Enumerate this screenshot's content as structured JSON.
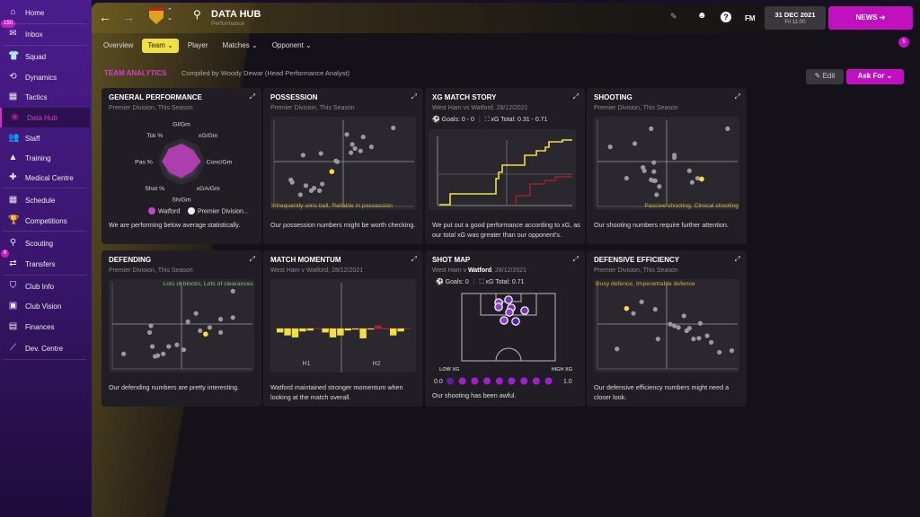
{
  "sidebar": {
    "items": [
      {
        "label": "Home",
        "icon": "home-icon"
      },
      {
        "label": "Inbox",
        "icon": "inbox-icon",
        "badge": "150"
      },
      {
        "label": "Squad",
        "icon": "shirt-icon"
      },
      {
        "label": "Dynamics",
        "icon": "dynamics-icon"
      },
      {
        "label": "Tactics",
        "icon": "tactics-icon"
      },
      {
        "label": "Data Hub",
        "icon": "data-hub-icon",
        "active": true
      },
      {
        "label": "Staff",
        "icon": "staff-icon"
      },
      {
        "label": "Training",
        "icon": "training-icon"
      },
      {
        "label": "Medical Centre",
        "icon": "medical-icon"
      },
      {
        "label": "Schedule",
        "icon": "calendar-icon"
      },
      {
        "label": "Competitions",
        "icon": "trophy-icon"
      },
      {
        "label": "Scouting",
        "icon": "search-icon"
      },
      {
        "label": "Transfers",
        "icon": "transfers-icon",
        "badge": "8"
      },
      {
        "label": "Club Info",
        "icon": "shield-icon"
      },
      {
        "label": "Club Vision",
        "icon": "briefcase-icon"
      },
      {
        "label": "Finances",
        "icon": "money-icon"
      },
      {
        "label": "Dev. Centre",
        "icon": "chart-icon"
      }
    ]
  },
  "header": {
    "title": "DATA HUB",
    "subtitle": "Performance",
    "fm": "FM",
    "date": "31 DEC 2021",
    "time": "Fri 11:00",
    "news": "NEWS",
    "notif_count": "5"
  },
  "tabs": [
    {
      "label": "Overview"
    },
    {
      "label": "Team ⌄",
      "selected": true
    },
    {
      "label": "Player"
    },
    {
      "label": "Matches ⌄"
    },
    {
      "label": "Opponent ⌄"
    }
  ],
  "section": {
    "title": "TEAM ANALYTICS",
    "compiled": "Compiled by Woody Dewar (Head Performance Analyst)",
    "edit": "Edit",
    "ask": "Ask For"
  },
  "colors": {
    "accent": "#c81ec8",
    "yellow": "#f0e040",
    "red": "#b02030"
  },
  "cards": {
    "general": {
      "title": "GENERAL PERFORMANCE",
      "sub": "Premier Division, This Season",
      "desc": "We are performing below average statistically.",
      "axes": [
        "Gl/Gm",
        "xG/Gm",
        "Conc/Gm",
        "xGA/Gm",
        "Sh/Gm",
        "Shot %",
        "Pas %",
        "Tck %"
      ],
      "watford": [
        0.55,
        0.5,
        0.6,
        0.45,
        0.5,
        0.5,
        0.6,
        0.55
      ],
      "legend_a": "Watford",
      "legend_b": "Premier Division..."
    },
    "possession": {
      "title": "POSSESSION",
      "sub": "Premier Division, This Season",
      "label": "Infrequently wins ball, Reliable in possession",
      "desc": "Our possession numbers might be worth checking.",
      "points": [
        [
          86,
          93
        ],
        [
          52,
          85
        ],
        [
          64,
          82
        ],
        [
          70,
          70
        ],
        [
          56,
          73
        ],
        [
          58,
          68
        ],
        [
          55,
          63
        ],
        [
          62,
          65
        ],
        [
          20,
          60
        ],
        [
          33,
          62
        ],
        [
          44,
          53
        ],
        [
          45,
          52
        ],
        [
          11,
          30
        ],
        [
          12,
          27
        ],
        [
          22,
          23
        ],
        [
          28,
          20
        ],
        [
          26,
          17
        ],
        [
          32,
          17
        ],
        [
          34,
          25
        ],
        [
          18,
          12
        ]
      ],
      "hl": [
        41,
        40
      ]
    },
    "xg": {
      "title": "XG MATCH STORY",
      "sub": "West Ham vs Watford, 28/12/2021",
      "goals": "Goals: 0 - 0",
      "xg": "xG Total: 0.31 - 0.71",
      "desc": "We put out a good performance according to xG, as our total xG was greater than our opponent's."
    },
    "shooting": {
      "title": "SHOOTING",
      "sub": "Premier Division, This Season",
      "label": "Passive shooting, Clinical shooting",
      "desc": "Our shooting numbers require further attention.",
      "points": [
        [
          38,
          92
        ],
        [
          94,
          92
        ],
        [
          8,
          70
        ],
        [
          26,
          74
        ],
        [
          55,
          60
        ],
        [
          55,
          57
        ],
        [
          40,
          51
        ],
        [
          32,
          45
        ],
        [
          33,
          41
        ],
        [
          40,
          40
        ],
        [
          66,
          41
        ],
        [
          20,
          32
        ],
        [
          38,
          30
        ],
        [
          40,
          29
        ],
        [
          41,
          29
        ],
        [
          68,
          27
        ],
        [
          72,
          32
        ],
        [
          44,
          22
        ],
        [
          42,
          12
        ]
      ],
      "hl": [
        75,
        31
      ]
    },
    "defending": {
      "title": "DEFENDING",
      "sub": "Premier Division, This Season",
      "label": "Lots of blocks, Lots of clearances",
      "desc": "Our defending numbers are pretty interesting.",
      "points": [
        [
          87,
          92
        ],
        [
          60,
          65
        ],
        [
          78,
          58
        ],
        [
          87,
          60
        ],
        [
          27,
          50
        ],
        [
          54,
          55
        ],
        [
          70,
          48
        ],
        [
          63,
          44
        ],
        [
          26,
          42
        ],
        [
          78,
          42
        ],
        [
          28,
          25
        ],
        [
          40,
          25
        ],
        [
          46,
          27
        ],
        [
          51,
          21
        ],
        [
          7,
          16
        ],
        [
          30,
          13
        ],
        [
          32,
          14
        ],
        [
          36,
          16
        ]
      ],
      "hl": [
        67,
        40
      ]
    },
    "momentum": {
      "title": "MATCH MOMENTUM",
      "sub": "West Ham v Watford, 28/12/2021",
      "h1": "H1",
      "h2": "H2",
      "desc": "Watford maintained stronger momentum when looking at the match overall.",
      "bars": [
        -4,
        -7,
        -9,
        -3,
        -2,
        0.5,
        -4,
        -9,
        -7,
        -2,
        -1,
        -10,
        -1,
        3,
        0,
        -7,
        -3
      ]
    },
    "shotmap": {
      "title": "SHOT MAP",
      "sub_pre": "West Ham v ",
      "sub_team": "Watford",
      "sub_post": ", 28/12/2021",
      "goals": "Goals: 0",
      "xg": "xG Total: 0.71",
      "low": "LOW XG",
      "high": "HIGH XG",
      "min": "0.0",
      "max": "1.0",
      "desc": "Our shooting has been awful."
    },
    "defeff": {
      "title": "DEFENSIVE EFFICIENCY",
      "sub": "Premier Division, This Season",
      "label": "Busy defence, Impenetrable defence",
      "desc": "Our defensive efficiency numbers might need a closer look.",
      "points": [
        [
          41,
          70
        ],
        [
          62,
          62
        ],
        [
          25,
          65
        ],
        [
          31,
          79
        ],
        [
          74,
          53
        ],
        [
          55,
          50
        ],
        [
          58,
          48
        ],
        [
          66,
          47
        ],
        [
          52,
          52
        ],
        [
          64,
          44
        ],
        [
          13,
          22
        ],
        [
          43,
          34
        ],
        [
          79,
          38
        ],
        [
          82,
          30
        ],
        [
          69,
          34
        ],
        [
          88,
          18
        ],
        [
          97,
          20
        ],
        [
          73,
          35
        ]
      ],
      "hl": [
        20,
        71
      ]
    }
  }
}
